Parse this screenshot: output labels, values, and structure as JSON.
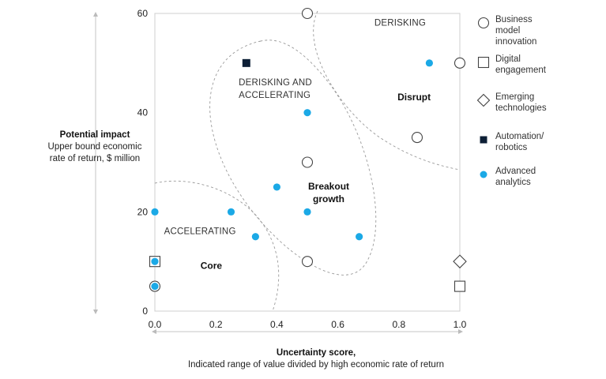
{
  "chart_data": {
    "type": "scatter",
    "xlabel": "Uncertainty score,",
    "xlabel_sub": "Indicated range of value divided by high economic rate of return",
    "ylabel": "Potential impact",
    "ylabel_sub": "Upper bound economic rate of return, $ million",
    "xlim": [
      0,
      1.0
    ],
    "ylim": [
      0,
      60
    ],
    "x_ticks": [
      "0.0",
      "0.2",
      "0.4",
      "0.6",
      "0.8",
      "1.0"
    ],
    "y_ticks": [
      "0",
      "20",
      "40",
      "60"
    ],
    "grid": false,
    "legend_position": "right",
    "regions": [
      {
        "label": "DERISKING",
        "type": "caps"
      },
      {
        "label": "DERISKING AND ACCELERATING",
        "type": "caps"
      },
      {
        "label": "ACCELERATING",
        "type": "caps"
      },
      {
        "label": "Disrupt",
        "type": "bold"
      },
      {
        "label": "Breakout growth",
        "type": "bold"
      },
      {
        "label": "Core",
        "type": "bold"
      }
    ],
    "series": [
      {
        "name": "Business model innovation",
        "marker": "open-circle",
        "color": "#444444",
        "points": [
          [
            0.5,
            60
          ],
          [
            1.0,
            50
          ],
          [
            0.86,
            35
          ],
          [
            0.5,
            30
          ],
          [
            0.5,
            10
          ],
          [
            0.0,
            5
          ]
        ]
      },
      {
        "name": "Digital engagement",
        "marker": "open-square",
        "color": "#444444",
        "points": [
          [
            0.0,
            10
          ],
          [
            1.0,
            5
          ]
        ]
      },
      {
        "name": "Emerging technologies",
        "marker": "open-diamond",
        "color": "#444444",
        "points": [
          [
            1.0,
            10
          ]
        ]
      },
      {
        "name": "Automation/ robotics",
        "marker": "filled-square",
        "color": "#0d1f36",
        "points": [
          [
            0.3,
            50
          ]
        ]
      },
      {
        "name": "Advanced analytics",
        "marker": "filled-circle",
        "color": "#1ba9e6",
        "points": [
          [
            0.9,
            50
          ],
          [
            0.5,
            40
          ],
          [
            0.4,
            25
          ],
          [
            0.0,
            20
          ],
          [
            0.25,
            20
          ],
          [
            0.5,
            20
          ],
          [
            0.33,
            15
          ],
          [
            0.67,
            15
          ],
          [
            0.0,
            10
          ],
          [
            0.0,
            5
          ]
        ]
      }
    ]
  },
  "legend": {
    "items": [
      {
        "label": "Business model innovation",
        "icon": "open-circle-icon"
      },
      {
        "label": "Digital engagement",
        "icon": "open-square-icon"
      },
      {
        "label": "Emerging technologies",
        "icon": "open-diamond-icon"
      },
      {
        "label": "Automation/ robotics",
        "icon": "filled-square-icon"
      },
      {
        "label": "Advanced analytics",
        "icon": "filled-circle-icon"
      }
    ]
  }
}
